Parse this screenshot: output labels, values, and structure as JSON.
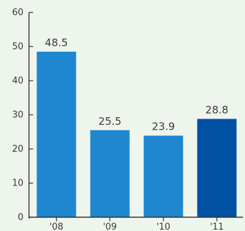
{
  "chart_data": {
    "type": "bar",
    "categories": [
      "'08",
      "'09",
      "'10",
      "'11"
    ],
    "values": [
      48.5,
      25.5,
      23.9,
      28.8
    ],
    "value_labels": [
      "48.5",
      "25.5",
      "23.9",
      "28.8"
    ],
    "yticks": [
      "0",
      "10",
      "20",
      "30",
      "40",
      "50",
      "60"
    ],
    "ylim": [
      0,
      60
    ],
    "grid": false,
    "colors": {
      "bar": "#1f87cf",
      "highlight": "#0050a4",
      "axis": "#333333",
      "background": "#eef5ec"
    },
    "highlight_index": 3
  }
}
